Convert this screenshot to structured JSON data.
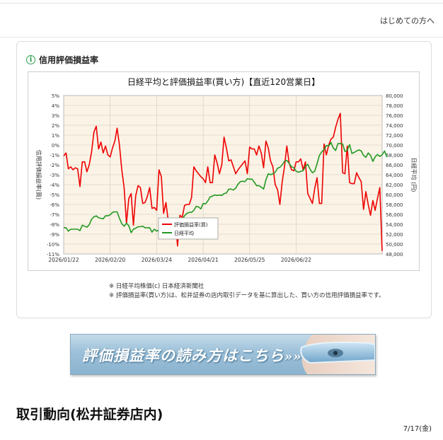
{
  "header": {
    "link_label": "はじめての方へ"
  },
  "section": {
    "title": "信用評価損益率",
    "icon": "info-icon"
  },
  "banner": {
    "text": "評価損益率の読み方はこちら",
    "arrows": "»»"
  },
  "notes": [
    "※ 日経平均株価(c) 日本経済新聞社",
    "※ 評価損益率(買い方)は、松井証券の店内取引データを基に算出した、買い方の信用評価損益率です。"
  ],
  "trading": {
    "heading": "取引動向(松井証券店内)",
    "date": "7/17(金)"
  },
  "colors": {
    "profit_loss": "#ee0000",
    "nikkei": "#229922",
    "plot_bg": "#fbf3e6"
  },
  "chart_data": {
    "type": "line",
    "title": "日経平均と評価損益率(買い方)【直近120営業日】",
    "xlabel": "",
    "ylabel": "信用評価損益率(買)",
    "y2label": "日経平均 (円)",
    "ylim": [
      -11,
      5
    ],
    "y2lim": [
      48000,
      80000
    ],
    "yticks": [
      "5%",
      "4%",
      "3%",
      "2%",
      "1%",
      "0%",
      "-1%",
      "-2%",
      "-3%",
      "-4%",
      "-5%",
      "-6%",
      "-7%",
      "-8%",
      "-9%",
      "-10%",
      "-11%"
    ],
    "y2ticks": [
      "80,000",
      "78,000",
      "76,000",
      "74,000",
      "72,000",
      "70,000",
      "68,000",
      "66,000",
      "64,000",
      "62,000",
      "60,000",
      "58,000",
      "56,000",
      "54,000",
      "52,000",
      "50,000",
      "48,000"
    ],
    "xticks": [
      "2026/01/22",
      "2026/02/20",
      "2026/03/24",
      "2026/04/21",
      "2026/05/25",
      "2026/06/22"
    ],
    "x_tick_index": [
      0,
      20,
      40,
      60,
      80,
      100
    ],
    "legend_position": "center",
    "grid": true,
    "series": [
      {
        "name": "評価損益率(買)",
        "axis": "left",
        "values": [
          -1.1,
          -0.8,
          -2.4,
          -2.2,
          -2.5,
          -2.3,
          -2.4,
          -4.2,
          -1.7,
          -1.7,
          -2.7,
          -2.0,
          -0.7,
          1.3,
          1.9,
          -0.4,
          0.3,
          -0.8,
          -0.1,
          -1.0,
          -1.2,
          -0.3,
          0.4,
          1.7,
          0.0,
          -2.5,
          -4.3,
          -7.9,
          -5.4,
          -4.9,
          -8.1,
          -5.1,
          -4.1,
          -4.3,
          -5.9,
          -5.8,
          -5.2,
          -4.3,
          -6.4,
          -6.3,
          -6.6,
          -2.5,
          -3.2,
          -6.9,
          -5.8,
          -7.7,
          -8.0,
          -9.2,
          -7.6,
          -10.2,
          -7.1,
          -7.3,
          -6.1,
          -6.0,
          -6.0,
          -5.3,
          -2.2,
          -2.6,
          -2.9,
          -3.2,
          -3.4,
          -3.8,
          -2.2,
          -3.8,
          -3.8,
          -1.0,
          -1.8,
          -2.9,
          -2.0,
          0.8,
          -0.3,
          -1.6,
          -1.5,
          -2.2,
          -2.9,
          -2.5,
          -2.2,
          -1.9,
          -1.6,
          -2.9,
          -0.2,
          -0.4,
          -0.4,
          -1.0,
          -0.1,
          -0.8,
          -2.3,
          0.4,
          -0.3,
          -1.6,
          -2.2,
          -4.0,
          -4.5,
          -6.0,
          -3.7,
          -2.2,
          -0.1,
          -1.8,
          -2.5,
          -2.6,
          -1.7,
          -1.7,
          -1.4,
          -2.5,
          -1.7,
          -4.9,
          -5.4,
          -5.9,
          -4.4,
          -3.3,
          -5.9,
          -5.9,
          0.1,
          -1.0,
          0.0,
          0.6,
          0.8,
          1.8,
          2.6,
          3.2,
          -2.8,
          -2.9,
          -0.1,
          -3.8,
          -3.9,
          -3.9,
          -2.8,
          -3.3,
          -3.7,
          -6.5,
          -4.7,
          -6.0,
          -7.1,
          -5.6,
          -6.6,
          -5.4,
          -4.3,
          -10.7
        ]
      },
      {
        "name": "日経平均",
        "axis": "right",
        "values": [
          53300,
          53300,
          52600,
          53000,
          53000,
          53000,
          53000,
          52700,
          53800,
          53600,
          53400,
          53900,
          55000,
          55500,
          55700,
          55300,
          55200,
          55100,
          55700,
          55700,
          55900,
          56400,
          56500,
          56500,
          55200,
          54100,
          53600,
          54200,
          53700,
          52300,
          53000,
          53200,
          53500,
          53500,
          53600,
          53300,
          53300,
          53300,
          52400,
          53000,
          52600,
          52900,
          53200,
          53400,
          53200,
          53000,
          53300,
          53500,
          53900,
          54800,
          55300,
          55000,
          55700,
          56200,
          56400,
          56400,
          56800,
          57600,
          57500,
          57100,
          58200,
          58100,
          58700,
          59500,
          59700,
          59900,
          59800,
          59900,
          59800,
          60200,
          60300,
          61100,
          61100,
          60900,
          61300,
          62100,
          62600,
          62700,
          62600,
          63200,
          63100,
          63100,
          62500,
          61800,
          61800,
          61500,
          61100,
          63000,
          64200,
          64000,
          64200,
          64500,
          65300,
          65500,
          66000,
          66700,
          66900,
          66300,
          65600,
          65400,
          64700,
          64500,
          64700,
          64800,
          65700,
          66100,
          65100,
          64400,
          64700,
          66200,
          67900,
          68600,
          69100,
          69900,
          69800,
          70500,
          69400,
          68900,
          70300,
          70300,
          70200,
          68700,
          68900,
          70100,
          68300,
          68500,
          68800,
          69000,
          68800,
          67900,
          67500,
          68400,
          67900,
          66700,
          67600,
          68100,
          67700,
          68000,
          68800,
          67600
        ]
      }
    ]
  }
}
